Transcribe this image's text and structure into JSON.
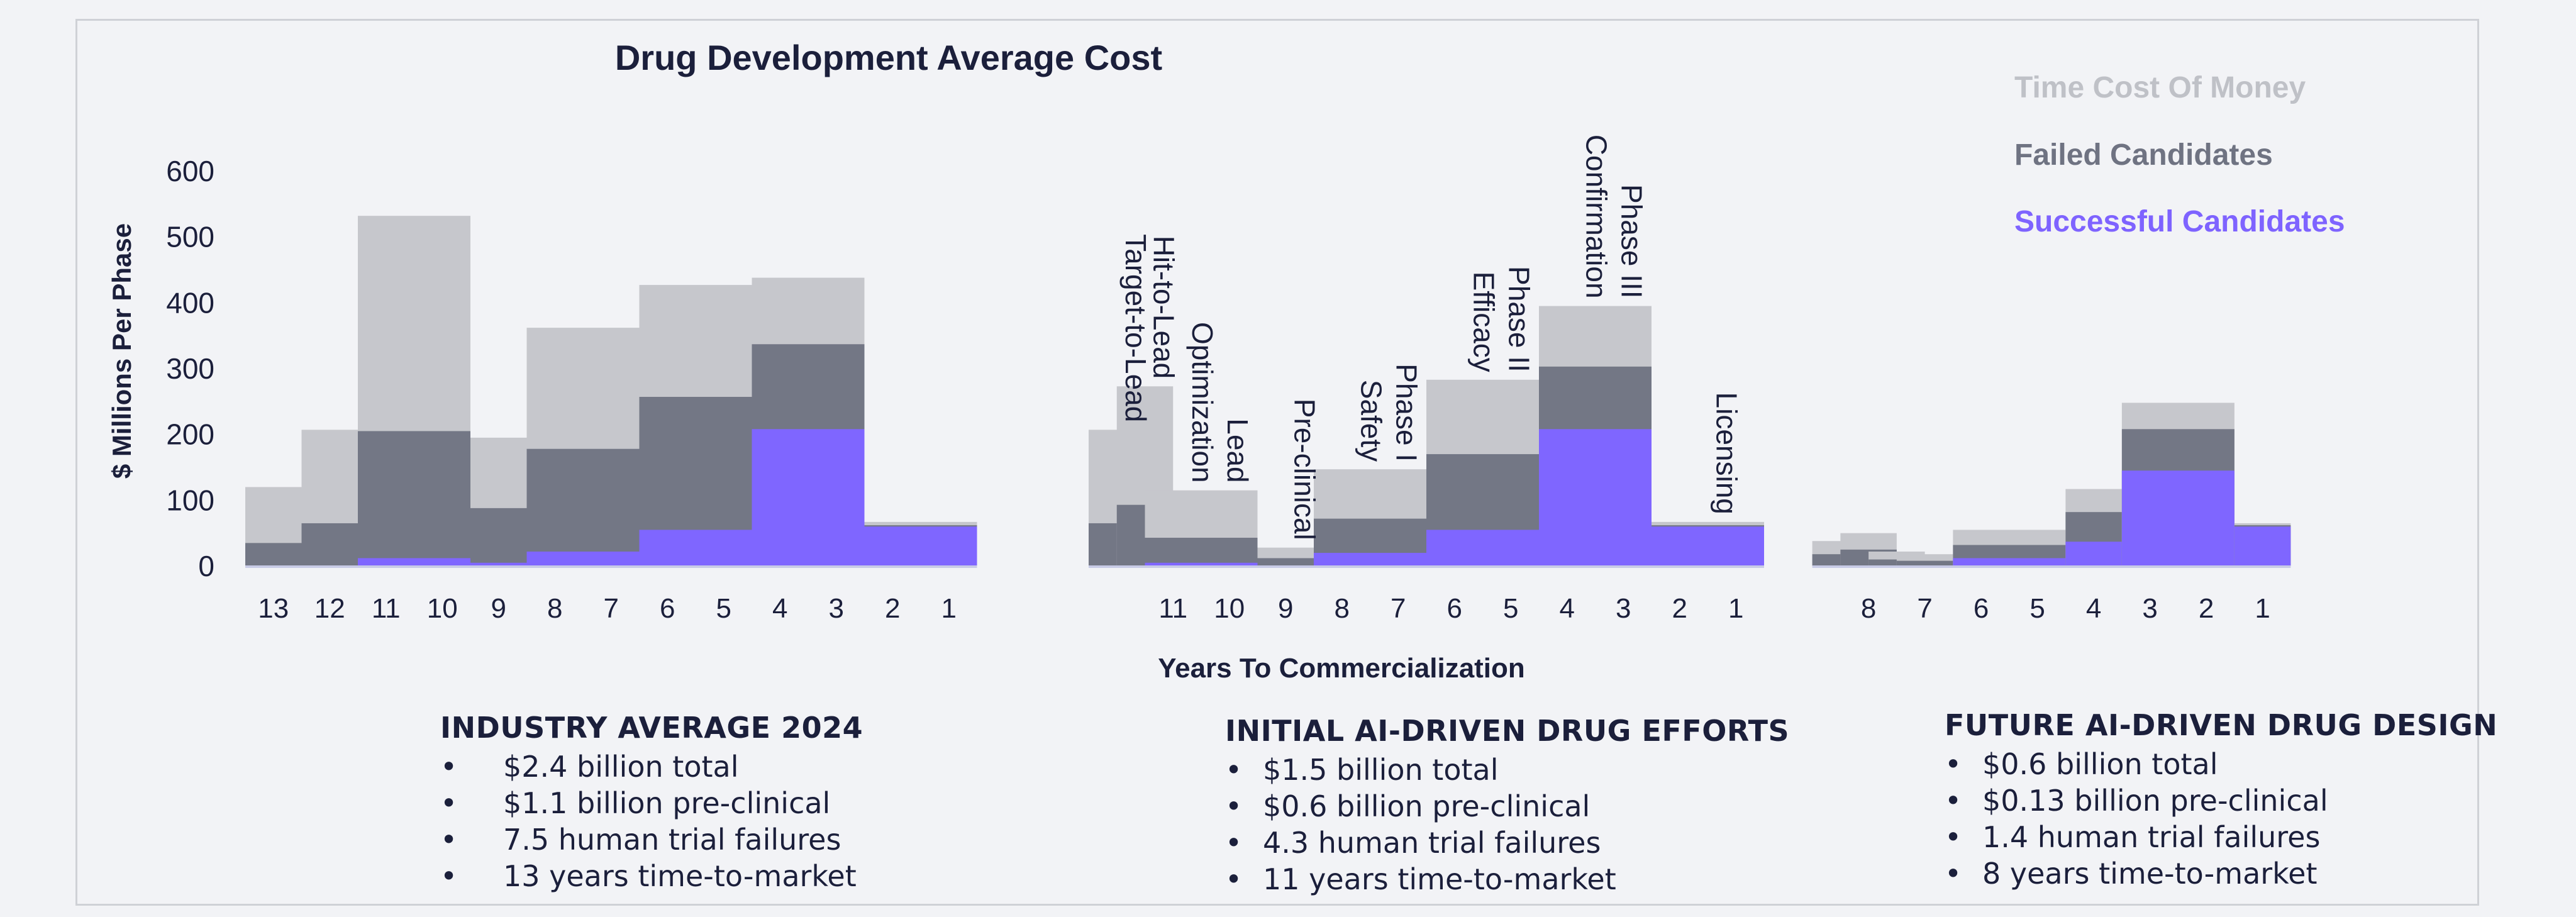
{
  "chart_data": {
    "type": "bar",
    "title": "Drug Development Average Cost",
    "ylabel": "$ Millions Per Phase",
    "xlabel": "Years To Commercialization",
    "ylim": [
      0,
      600
    ],
    "yticks": [
      0,
      100,
      200,
      300,
      400,
      500,
      600
    ],
    "stacked": true,
    "legend": {
      "position": "top-right",
      "entries": [
        "Time Cost Of Money",
        "Failed Candidates",
        "Successful Candidates"
      ]
    },
    "colors": {
      "successful": "#7f66ff",
      "failed": "#737785",
      "time_cost": "#c6c7cc",
      "legend_time_cost": "#bfc1c7",
      "legend_failed": "#6f7382",
      "legend_successful": "#7e63ff",
      "axis_line": "#c8cbe6"
    },
    "series_names": [
      "Successful Candidates",
      "Failed Candidates",
      "Time Cost Of Money"
    ],
    "groups": [
      {
        "name": "Industry Average 2024",
        "tick_labels": [
          "13",
          "12",
          "11",
          "10",
          "9",
          "8",
          "7",
          "6",
          "5",
          "4",
          "3",
          "2",
          "1"
        ],
        "bars": [
          {
            "years": [
              13,
              13
            ],
            "successful": 0,
            "failed": 35,
            "time_cost": 120
          },
          {
            "years": [
              12,
              12
            ],
            "successful": 0,
            "failed": 65,
            "time_cost": 207
          },
          {
            "years": [
              11,
              10
            ],
            "successful": 12,
            "failed": 205,
            "time_cost": 532
          },
          {
            "years": [
              9,
              9
            ],
            "successful": 5,
            "failed": 88,
            "time_cost": 195
          },
          {
            "years": [
              8,
              7
            ],
            "successful": 22,
            "failed": 178,
            "time_cost": 362
          },
          {
            "years": [
              6,
              5
            ],
            "successful": 55,
            "failed": 257,
            "time_cost": 427
          },
          {
            "years": [
              4,
              3
            ],
            "successful": 208,
            "failed": 337,
            "time_cost": 438
          },
          {
            "years": [
              2,
              1
            ],
            "successful": 60,
            "failed": 62,
            "time_cost": 67
          }
        ]
      },
      {
        "name": "Initial AI-Driven Drug Efforts",
        "tick_labels": [
          "11",
          "10",
          "9",
          "8",
          "7",
          "6",
          "5",
          "4",
          "3",
          "2",
          "1"
        ],
        "bars": [
          {
            "years": [
              12,
              12
            ],
            "successful": 0,
            "failed": 65,
            "time_cost": 207,
            "phase": "Target-to-Lead"
          },
          {
            "years": [
              11.5,
              11.5
            ],
            "successful": 0,
            "failed": 93,
            "time_cost": 273,
            "phase": "Hit-to-Lead"
          },
          {
            "years": [
              11,
              10
            ],
            "successful": 5,
            "failed": 43,
            "time_cost": 115,
            "phase": "Lead Optimization"
          },
          {
            "years": [
              9,
              9
            ],
            "successful": 0,
            "failed": 12,
            "time_cost": 28,
            "phase": "Pre-clinical"
          },
          {
            "years": [
              8,
              7
            ],
            "successful": 20,
            "failed": 72,
            "time_cost": 147,
            "phase": "Phase I Safety"
          },
          {
            "years": [
              6,
              5
            ],
            "successful": 55,
            "failed": 170,
            "time_cost": 283,
            "phase": "Phase II Efficacy"
          },
          {
            "years": [
              4,
              3
            ],
            "successful": 208,
            "failed": 303,
            "time_cost": 395,
            "phase": "Phase III Confirmation"
          },
          {
            "years": [
              2,
              1
            ],
            "successful": 60,
            "failed": 62,
            "time_cost": 67,
            "phase": "Licensing"
          }
        ],
        "phase_labels": [
          [
            "Target-to-Lead"
          ],
          [
            "Hit-to-Lead"
          ],
          [
            "Lead",
            "Optimization"
          ],
          [
            "Pre-clinical"
          ],
          [
            "Phase I",
            "Safety"
          ],
          [
            "Phase II",
            "Efficacy"
          ],
          [
            "Phase III",
            "Confirmation"
          ],
          [
            "Licensing"
          ]
        ]
      },
      {
        "name": "Future AI-Driven Drug Design",
        "tick_labels": [
          "8",
          "7",
          "6",
          "5",
          "4",
          "3",
          "2",
          "1"
        ],
        "bars": [
          {
            "years": [
              8.5,
              8.5
            ],
            "successful": 0,
            "failed": 18,
            "time_cost": 38
          },
          {
            "years": [
              8,
              8
            ],
            "successful": 0,
            "failed": 25,
            "time_cost": 50
          },
          {
            "years": [
              7.5,
              7.5
            ],
            "successful": 0,
            "failed": 10,
            "time_cost": 22
          },
          {
            "years": [
              7,
              7
            ],
            "successful": 0,
            "failed": 8,
            "time_cost": 18
          },
          {
            "years": [
              6,
              5
            ],
            "successful": 12,
            "failed": 32,
            "time_cost": 55
          },
          {
            "years": [
              4,
              4
            ],
            "successful": 37,
            "failed": 82,
            "time_cost": 117
          },
          {
            "years": [
              3,
              2
            ],
            "successful": 145,
            "failed": 208,
            "time_cost": 248
          },
          {
            "years": [
              1,
              1
            ],
            "successful": 60,
            "failed": 62,
            "time_cost": 65
          }
        ]
      }
    ]
  },
  "summaries": [
    {
      "heading": "INDUSTRY AVERAGE 2024",
      "items": [
        "$2.4 billion total",
        "$1.1 billion pre-clinical",
        "7.5 human trial failures",
        "13 years time-to-market"
      ]
    },
    {
      "heading": "INITIAL AI-DRIVEN DRUG EFFORTS",
      "items": [
        "$1.5 billion total",
        "$0.6 billion pre-clinical",
        "4.3 human trial failures",
        "11 years time-to-market"
      ]
    },
    {
      "heading": "FUTURE AI-DRIVEN DRUG DESIGN",
      "items": [
        "$0.6 billion total",
        "$0.13 billion pre-clinical",
        "1.4 human trial failures",
        "8 years time-to-market"
      ]
    }
  ]
}
